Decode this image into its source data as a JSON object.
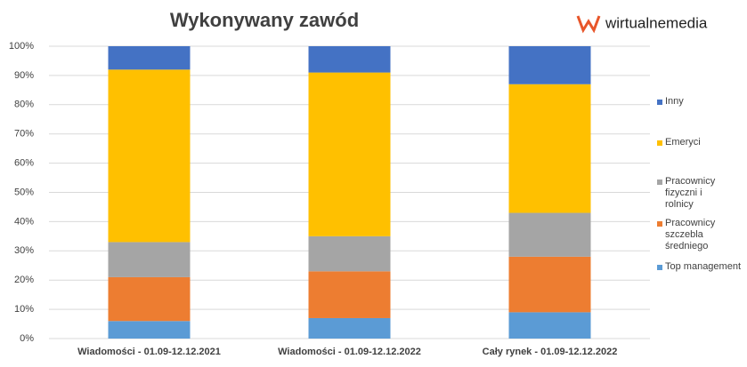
{
  "chart_data": {
    "type": "bar",
    "stacked": true,
    "title": "Wykonywany zawód",
    "logo": "wirtualnemedia",
    "categories": [
      "Wiadomości - 01.09-12.12.2021",
      "Wiadomości - 01.09-12.12.2022",
      "Cały rynek - 01.09-12.12.2022"
    ],
    "series": [
      {
        "name": "Top management",
        "color": "#5b9bd5",
        "values": [
          6,
          7,
          9
        ]
      },
      {
        "name": "Pracownicy szczebla średniego",
        "color": "#ed7d31",
        "values": [
          15,
          16,
          19
        ]
      },
      {
        "name": "Pracownicy fizyczni i rolnicy",
        "color": "#a5a5a5",
        "values": [
          12,
          12,
          15
        ]
      },
      {
        "name": "Emeryci",
        "color": "#ffc000",
        "values": [
          59,
          56,
          44
        ]
      },
      {
        "name": "Inny",
        "color": "#4472c4",
        "values": [
          8,
          9,
          13
        ]
      }
    ],
    "ylim": [
      0,
      100
    ],
    "yticks": [
      {
        "value": 0,
        "label": "0%"
      },
      {
        "value": 10,
        "label": "10%"
      },
      {
        "value": 20,
        "label": "20%"
      },
      {
        "value": 30,
        "label": "30%"
      },
      {
        "value": 40,
        "label": "40%"
      },
      {
        "value": 50,
        "label": "50%"
      },
      {
        "value": 60,
        "label": "60%"
      },
      {
        "value": 70,
        "label": "70%"
      },
      {
        "value": 80,
        "label": "80%"
      },
      {
        "value": 90,
        "label": "90%"
      },
      {
        "value": 100,
        "label": "100%"
      }
    ],
    "grid": true,
    "legend": "right"
  }
}
